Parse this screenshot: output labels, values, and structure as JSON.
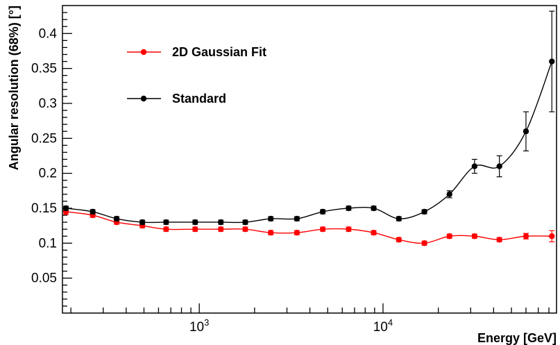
{
  "chart_data": {
    "type": "line",
    "xlabel": "Energy [GeV]",
    "ylabel": "Angular resolution (68%) [°]",
    "xscale": "log",
    "xlim": [
      180,
      88000
    ],
    "ylim": [
      0,
      0.44
    ],
    "x_ticks": [
      {
        "value": 1000,
        "base": "10",
        "exp": "3"
      },
      {
        "value": 10000,
        "base": "10",
        "exp": "4"
      }
    ],
    "y_ticks": [
      "0.05",
      "0.1",
      "0.15",
      "0.2",
      "0.25",
      "0.3",
      "0.35",
      "0.4"
    ],
    "y_tick_values": [
      0.05,
      0.1,
      0.15,
      0.2,
      0.25,
      0.3,
      0.35,
      0.4
    ],
    "grid": false,
    "legend_position": "top-left",
    "series": [
      {
        "name": "2D Gaussian Fit",
        "color": "#ff0000",
        "points": [
          {
            "x": 188,
            "y": 0.145,
            "err": 0.004
          },
          {
            "x": 263,
            "y": 0.14,
            "err": 0.003
          },
          {
            "x": 355,
            "y": 0.13,
            "err": 0.003
          },
          {
            "x": 490,
            "y": 0.125,
            "err": 0.003
          },
          {
            "x": 660,
            "y": 0.12,
            "err": 0.003
          },
          {
            "x": 950,
            "y": 0.12,
            "err": 0.003
          },
          {
            "x": 1310,
            "y": 0.12,
            "err": 0.003
          },
          {
            "x": 1780,
            "y": 0.12,
            "err": 0.003
          },
          {
            "x": 2450,
            "y": 0.115,
            "err": 0.003
          },
          {
            "x": 3400,
            "y": 0.115,
            "err": 0.003
          },
          {
            "x": 4700,
            "y": 0.12,
            "err": 0.003
          },
          {
            "x": 6500,
            "y": 0.12,
            "err": 0.003
          },
          {
            "x": 8900,
            "y": 0.115,
            "err": 0.003
          },
          {
            "x": 12200,
            "y": 0.105,
            "err": 0.003
          },
          {
            "x": 16800,
            "y": 0.1,
            "err": 0.003
          },
          {
            "x": 23000,
            "y": 0.11,
            "err": 0.003
          },
          {
            "x": 31500,
            "y": 0.11,
            "err": 0.003
          },
          {
            "x": 43000,
            "y": 0.105,
            "err": 0.003
          },
          {
            "x": 60000,
            "y": 0.11,
            "err": 0.004
          },
          {
            "x": 83000,
            "y": 0.11,
            "err": 0.008
          }
        ]
      },
      {
        "name": "Standard",
        "color": "#000000",
        "points": [
          {
            "x": 188,
            "y": 0.15,
            "err": 0.003
          },
          {
            "x": 263,
            "y": 0.145,
            "err": 0.003
          },
          {
            "x": 355,
            "y": 0.135,
            "err": 0.003
          },
          {
            "x": 490,
            "y": 0.13,
            "err": 0.003
          },
          {
            "x": 660,
            "y": 0.13,
            "err": 0.003
          },
          {
            "x": 950,
            "y": 0.13,
            "err": 0.003
          },
          {
            "x": 1310,
            "y": 0.13,
            "err": 0.003
          },
          {
            "x": 1780,
            "y": 0.13,
            "err": 0.003
          },
          {
            "x": 2450,
            "y": 0.135,
            "err": 0.003
          },
          {
            "x": 3400,
            "y": 0.135,
            "err": 0.003
          },
          {
            "x": 4700,
            "y": 0.145,
            "err": 0.003
          },
          {
            "x": 6500,
            "y": 0.15,
            "err": 0.003
          },
          {
            "x": 8900,
            "y": 0.15,
            "err": 0.003
          },
          {
            "x": 12200,
            "y": 0.135,
            "err": 0.003
          },
          {
            "x": 16800,
            "y": 0.145,
            "err": 0.003
          },
          {
            "x": 23000,
            "y": 0.17,
            "err": 0.005
          },
          {
            "x": 31500,
            "y": 0.21,
            "err": 0.01
          },
          {
            "x": 43000,
            "y": 0.21,
            "err": 0.015
          },
          {
            "x": 60000,
            "y": 0.26,
            "err": 0.028
          },
          {
            "x": 83000,
            "y": 0.36,
            "err": 0.072
          }
        ]
      }
    ]
  }
}
